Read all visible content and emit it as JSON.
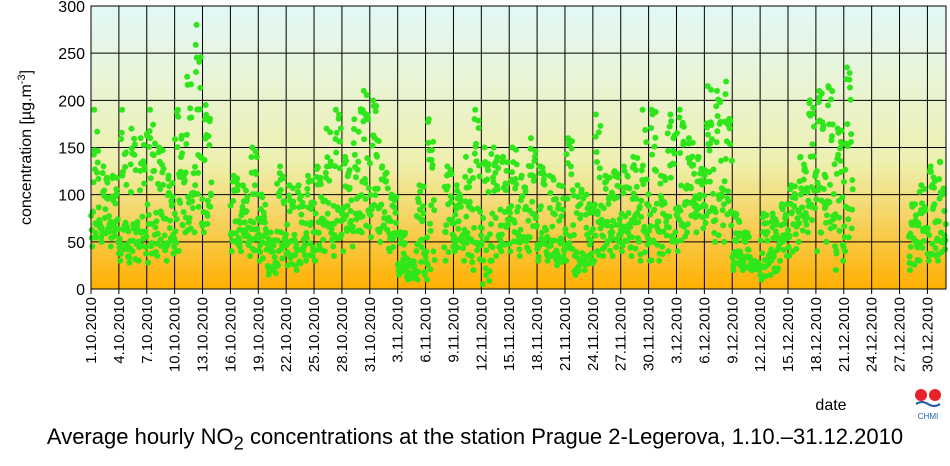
{
  "caption": {
    "pre": "Average hourly NO",
    "sub": "2",
    "post": " concentrations at the station Prague 2-Legerova, 1.10.–31.12.2010"
  },
  "logo": {
    "text": "CHMI",
    "colors": [
      "#e8232a",
      "#e8232a"
    ]
  },
  "colors": {
    "points": "#2fe61a",
    "gradient_top": "#e2f8f8",
    "gradient_mid": "#eef0b0",
    "gradient_bottom": "#ffb000",
    "grid": "#000000"
  },
  "chart_data": {
    "type": "scatter",
    "title": "",
    "xlabel": "date",
    "ylabel": "concentration [µg.m-3]",
    "ylim": [
      0,
      300
    ],
    "yticks": [
      0,
      50,
      100,
      150,
      200,
      250,
      300
    ],
    "xlim": [
      "2010-10-01",
      "2011-01-01"
    ],
    "xticks": [
      "1.10.2010",
      "4.10.2010",
      "7.10.2010",
      "10.10.2010",
      "13.10.2010",
      "16.10.2010",
      "19.10.2010",
      "22.10.2010",
      "25.10.2010",
      "28.10.2010",
      "31.10.2010",
      "3.11.2010",
      "6.11.2010",
      "9.11.2010",
      "12.11.2010",
      "15.11.2010",
      "18.11.2010",
      "21.11.2010",
      "24.11.2010",
      "27.11.2010",
      "30.11.2010",
      "3.12.2010",
      "6.12.2010",
      "9.12.2010",
      "12.12.2010",
      "15.12.2010",
      "18.12.2010",
      "21.12.2010",
      "24.12.2010",
      "27.12.2010",
      "30.12.2010"
    ],
    "grid": true,
    "x": [
      "2010-10-01",
      "2010-10-02",
      "2010-10-03",
      "2010-10-04",
      "2010-10-05",
      "2010-10-06",
      "2010-10-07",
      "2010-10-08",
      "2010-10-09",
      "2010-10-10",
      "2010-10-11",
      "2010-10-12",
      "2010-10-13",
      "2010-10-14",
      "2010-10-15",
      "2010-10-16",
      "2010-10-17",
      "2010-10-18",
      "2010-10-19",
      "2010-10-20",
      "2010-10-21",
      "2010-10-22",
      "2010-10-23",
      "2010-10-24",
      "2010-10-25",
      "2010-10-26",
      "2010-10-27",
      "2010-10-28",
      "2010-10-29",
      "2010-10-30",
      "2010-10-31",
      "2010-11-01",
      "2010-11-02",
      "2010-11-03",
      "2010-11-04",
      "2010-11-05",
      "2010-11-06",
      "2010-11-07",
      "2010-11-08",
      "2010-11-09",
      "2010-11-10",
      "2010-11-11",
      "2010-11-12",
      "2010-11-13",
      "2010-11-14",
      "2010-11-15",
      "2010-11-16",
      "2010-11-17",
      "2010-11-18",
      "2010-11-19",
      "2010-11-20",
      "2010-11-21",
      "2010-11-22",
      "2010-11-23",
      "2010-11-24",
      "2010-11-25",
      "2010-11-26",
      "2010-11-27",
      "2010-11-28",
      "2010-11-29",
      "2010-11-30",
      "2010-12-01",
      "2010-12-02",
      "2010-12-03",
      "2010-12-04",
      "2010-12-05",
      "2010-12-06",
      "2010-12-07",
      "2010-12-08",
      "2010-12-09",
      "2010-12-10",
      "2010-12-11",
      "2010-12-12",
      "2010-12-13",
      "2010-12-14",
      "2010-12-15",
      "2010-12-16",
      "2010-12-17",
      "2010-12-18",
      "2010-12-19",
      "2010-12-20",
      "2010-12-21",
      "2010-12-22",
      "2010-12-23",
      "2010-12-24",
      "2010-12-25",
      "2010-12-26",
      "2010-12-27",
      "2010-12-28",
      "2010-12-29",
      "2010-12-30",
      "2010-12-31"
    ],
    "daily_min": [
      45,
      50,
      45,
      30,
      28,
      30,
      28,
      35,
      30,
      40,
      60,
      60,
      60,
      null,
      null,
      40,
      40,
      35,
      30,
      15,
      25,
      25,
      20,
      30,
      30,
      40,
      35,
      40,
      45,
      60,
      55,
      50,
      40,
      15,
      10,
      10,
      10,
      null,
      30,
      40,
      30,
      20,
      5,
      30,
      40,
      40,
      35,
      40,
      30,
      30,
      25,
      30,
      15,
      20,
      30,
      35,
      35,
      40,
      35,
      30,
      30,
      30,
      40,
      40,
      60,
      60,
      70,
      50,
      50,
      20,
      20,
      20,
      10,
      15,
      30,
      35,
      50,
      60,
      40,
      50,
      20,
      40,
      null,
      null,
      null,
      null,
      null,
      null,
      20,
      30,
      30,
      30
    ],
    "daily_max": [
      190,
      130,
      120,
      190,
      170,
      160,
      190,
      150,
      120,
      190,
      225,
      280,
      195,
      null,
      null,
      120,
      110,
      150,
      100,
      60,
      130,
      110,
      110,
      120,
      130,
      170,
      190,
      140,
      180,
      210,
      200,
      130,
      100,
      60,
      30,
      110,
      180,
      220,
      130,
      110,
      140,
      190,
      150,
      150,
      140,
      150,
      120,
      160,
      130,
      120,
      110,
      160,
      110,
      100,
      185,
      120,
      125,
      130,
      140,
      190,
      190,
      120,
      185,
      190,
      160,
      140,
      215,
      210,
      220,
      80,
      60,
      30,
      80,
      80,
      90,
      110,
      140,
      200,
      210,
      215,
      170,
      235,
      null,
      null,
      null,
      null,
      null,
      null,
      90,
      110,
      130,
      135
    ],
    "daily_mean": [
      90,
      85,
      75,
      70,
      70,
      85,
      90,
      90,
      75,
      100,
      125,
      145,
      125,
      null,
      null,
      75,
      70,
      75,
      60,
      30,
      65,
      60,
      55,
      70,
      75,
      95,
      100,
      90,
      100,
      115,
      110,
      90,
      60,
      30,
      20,
      55,
      90,
      120,
      75,
      70,
      70,
      90,
      65,
      80,
      90,
      90,
      70,
      85,
      65,
      60,
      55,
      70,
      40,
      40,
      90,
      75,
      75,
      85,
      80,
      90,
      95,
      75,
      90,
      110,
      110,
      100,
      130,
      120,
      110,
      40,
      35,
      25,
      40,
      45,
      60,
      70,
      90,
      120,
      130,
      125,
      100,
      120,
      null,
      null,
      null,
      null,
      null,
      null,
      60,
      70,
      75,
      80
    ]
  }
}
